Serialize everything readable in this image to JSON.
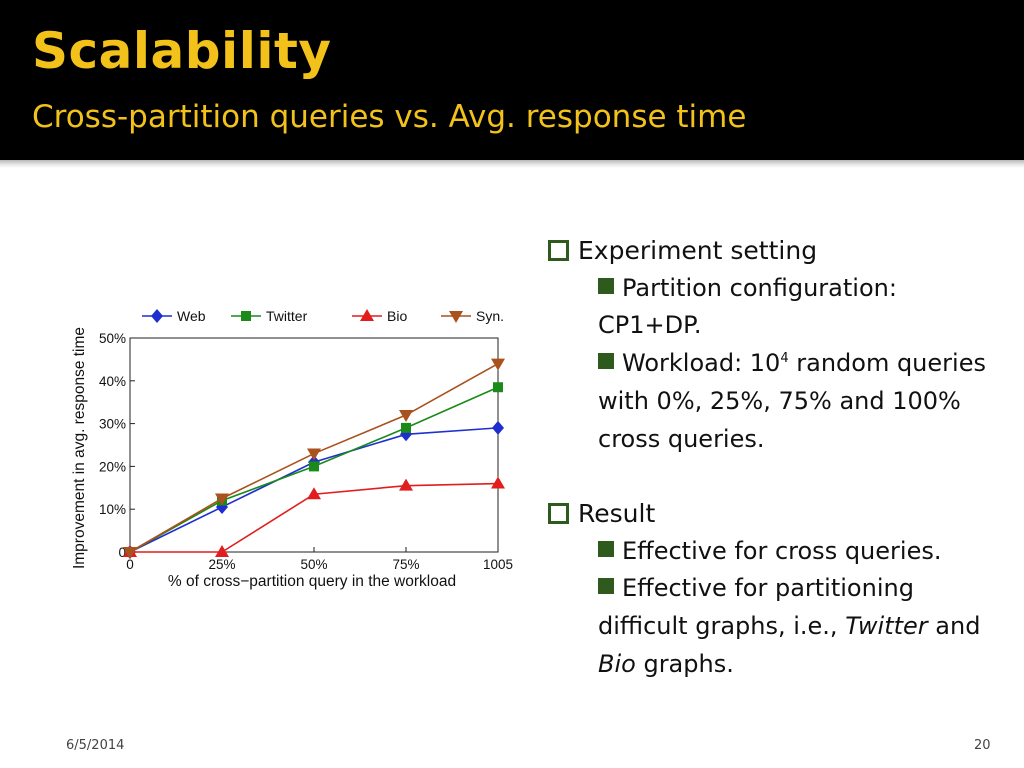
{
  "slide": {
    "title": "Scalability",
    "subtitle": "Cross-partition queries vs. Avg. response time",
    "date": "6/5/2014",
    "page_number": "20",
    "accent_color": "#f2c21b",
    "bullet_color": "#2f5a1d"
  },
  "bullets": {
    "experiment": {
      "heading": "Experiment setting",
      "partition_label": "Partition configuration: CP1+DP.",
      "workload_pre": "Workload: 10",
      "workload_sup": "4",
      "workload_post": " random queries with 0%, 25%, 75% and 100% cross queries."
    },
    "result": {
      "heading": "Result",
      "item1": "Effective for cross queries.",
      "item2_pre": "Effective for partitioning difficult graphs, i.e., ",
      "item2_em1": "Twitter",
      "item2_mid": " and ",
      "item2_em2": "Bio",
      "item2_post": " graphs."
    }
  },
  "chart_data": {
    "type": "line",
    "x": [
      0,
      25,
      50,
      75,
      100
    ],
    "x_tick_labels": [
      "0",
      "25%",
      "50%",
      "75%",
      "1005"
    ],
    "y_tick_labels": [
      "0",
      "10%",
      "20%",
      "30%",
      "40%",
      "50%"
    ],
    "ylim": [
      0,
      50
    ],
    "xlabel": "% of cross−partition query in the workload",
    "ylabel": "Improvement in avg. response time",
    "grid": true,
    "legend_position": "top",
    "series": [
      {
        "name": "Web",
        "color": "#1f2fcf",
        "marker": "diamond",
        "values": [
          0,
          10.5,
          21,
          27.5,
          29
        ]
      },
      {
        "name": "Twitter",
        "color": "#1a8a1a",
        "marker": "square",
        "values": [
          0,
          12,
          20,
          29,
          38.5
        ]
      },
      {
        "name": "Bio",
        "color": "#e21d1d",
        "marker": "triangle-up",
        "values": [
          0,
          0,
          13.5,
          15.5,
          16
        ]
      },
      {
        "name": "Syn.",
        "color": "#a9521d",
        "marker": "triangle-down",
        "values": [
          0,
          12.5,
          23,
          32,
          44
        ]
      }
    ]
  }
}
